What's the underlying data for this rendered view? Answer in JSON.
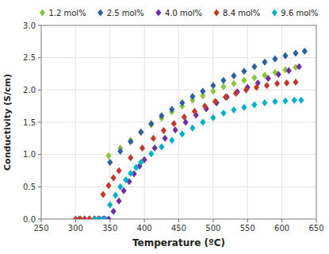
{
  "chart_data": {
    "type": "scatter",
    "xlabel": "Temperature (ºC)",
    "ylabel": "Conductivity (S/cm)",
    "xlim": [
      250,
      650
    ],
    "ylim": [
      0,
      3
    ],
    "xticks": [
      250,
      300,
      350,
      400,
      450,
      500,
      550,
      600,
      650
    ],
    "yticks": [
      {
        "value": 0,
        "label": "0.0"
      },
      0.5,
      {
        "value": 1.0,
        "label": "1.0"
      },
      1.5,
      {
        "value": 2.0,
        "label": "2.0"
      },
      2.5,
      {
        "value": 3.0,
        "label": "3.0"
      }
    ],
    "grid": true,
    "legend": "top",
    "marker": "diamond",
    "series": [
      {
        "name": "1.2 mol%",
        "color": "#8cc63f",
        "x": [
          348,
          365,
          380,
          395,
          410,
          425,
          440,
          455,
          470,
          485,
          500,
          515,
          530,
          545,
          560,
          575,
          590,
          605,
          620
        ],
        "values": [
          0.98,
          1.1,
          1.22,
          1.34,
          1.46,
          1.56,
          1.66,
          1.75,
          1.84,
          1.91,
          1.98,
          2.05,
          2.1,
          2.15,
          2.19,
          2.23,
          2.27,
          2.31,
          2.35
        ]
      },
      {
        "name": "2.5 mol%",
        "color": "#2e5fa3",
        "x": [
          305,
          313,
          320,
          328,
          335,
          343,
          350,
          365,
          380,
          395,
          410,
          425,
          440,
          455,
          470,
          485,
          500,
          515,
          530,
          545,
          560,
          575,
          590,
          605,
          620,
          633
        ],
        "values": [
          0.0,
          0.0,
          0.0,
          0.0,
          0.0,
          0.0,
          0.88,
          1.05,
          1.2,
          1.35,
          1.48,
          1.6,
          1.7,
          1.8,
          1.9,
          1.98,
          2.07,
          2.15,
          2.22,
          2.29,
          2.36,
          2.43,
          2.48,
          2.53,
          2.57,
          2.6
        ]
      },
      {
        "name": "4.0 mol%",
        "color": "#7030a0",
        "x": [
          340,
          348,
          355,
          363,
          370,
          378,
          385,
          393,
          400,
          415,
          430,
          445,
          460,
          475,
          490,
          505,
          520,
          535,
          550,
          565,
          580,
          595,
          610,
          625
        ],
        "values": [
          0.0,
          0.0,
          0.12,
          0.28,
          0.44,
          0.58,
          0.7,
          0.82,
          0.92,
          1.1,
          1.25,
          1.38,
          1.5,
          1.61,
          1.71,
          1.8,
          1.89,
          1.97,
          2.04,
          2.11,
          2.18,
          2.24,
          2.3,
          2.36
        ]
      },
      {
        "name": "8.4 mol%",
        "color": "#c0392b",
        "x": [
          300,
          307,
          313,
          320,
          327,
          333,
          340,
          348,
          355,
          363,
          380,
          397,
          413,
          428,
          443,
          458,
          473,
          488,
          503,
          518,
          533,
          548,
          563,
          578,
          593,
          607,
          620
        ],
        "values": [
          0.0,
          0.0,
          0.0,
          0.0,
          0.0,
          0.0,
          0.38,
          0.52,
          0.64,
          0.75,
          0.95,
          1.1,
          1.25,
          1.37,
          1.48,
          1.58,
          1.67,
          1.75,
          1.82,
          1.89,
          1.95,
          2.0,
          2.04,
          2.07,
          2.1,
          2.11,
          2.12
        ]
      },
      {
        "name": "9.6 mol%",
        "color": "#00b0c8",
        "x": [
          328,
          335,
          342,
          350,
          358,
          365,
          373,
          380,
          388,
          395,
          410,
          425,
          440,
          455,
          470,
          485,
          500,
          515,
          530,
          545,
          560,
          575,
          590,
          605,
          618,
          628
        ],
        "values": [
          0.0,
          0.0,
          0.0,
          0.22,
          0.37,
          0.5,
          0.61,
          0.71,
          0.8,
          0.88,
          1.01,
          1.12,
          1.22,
          1.32,
          1.41,
          1.5,
          1.57,
          1.64,
          1.69,
          1.73,
          1.77,
          1.8,
          1.82,
          1.83,
          1.84,
          1.84
        ]
      }
    ]
  }
}
